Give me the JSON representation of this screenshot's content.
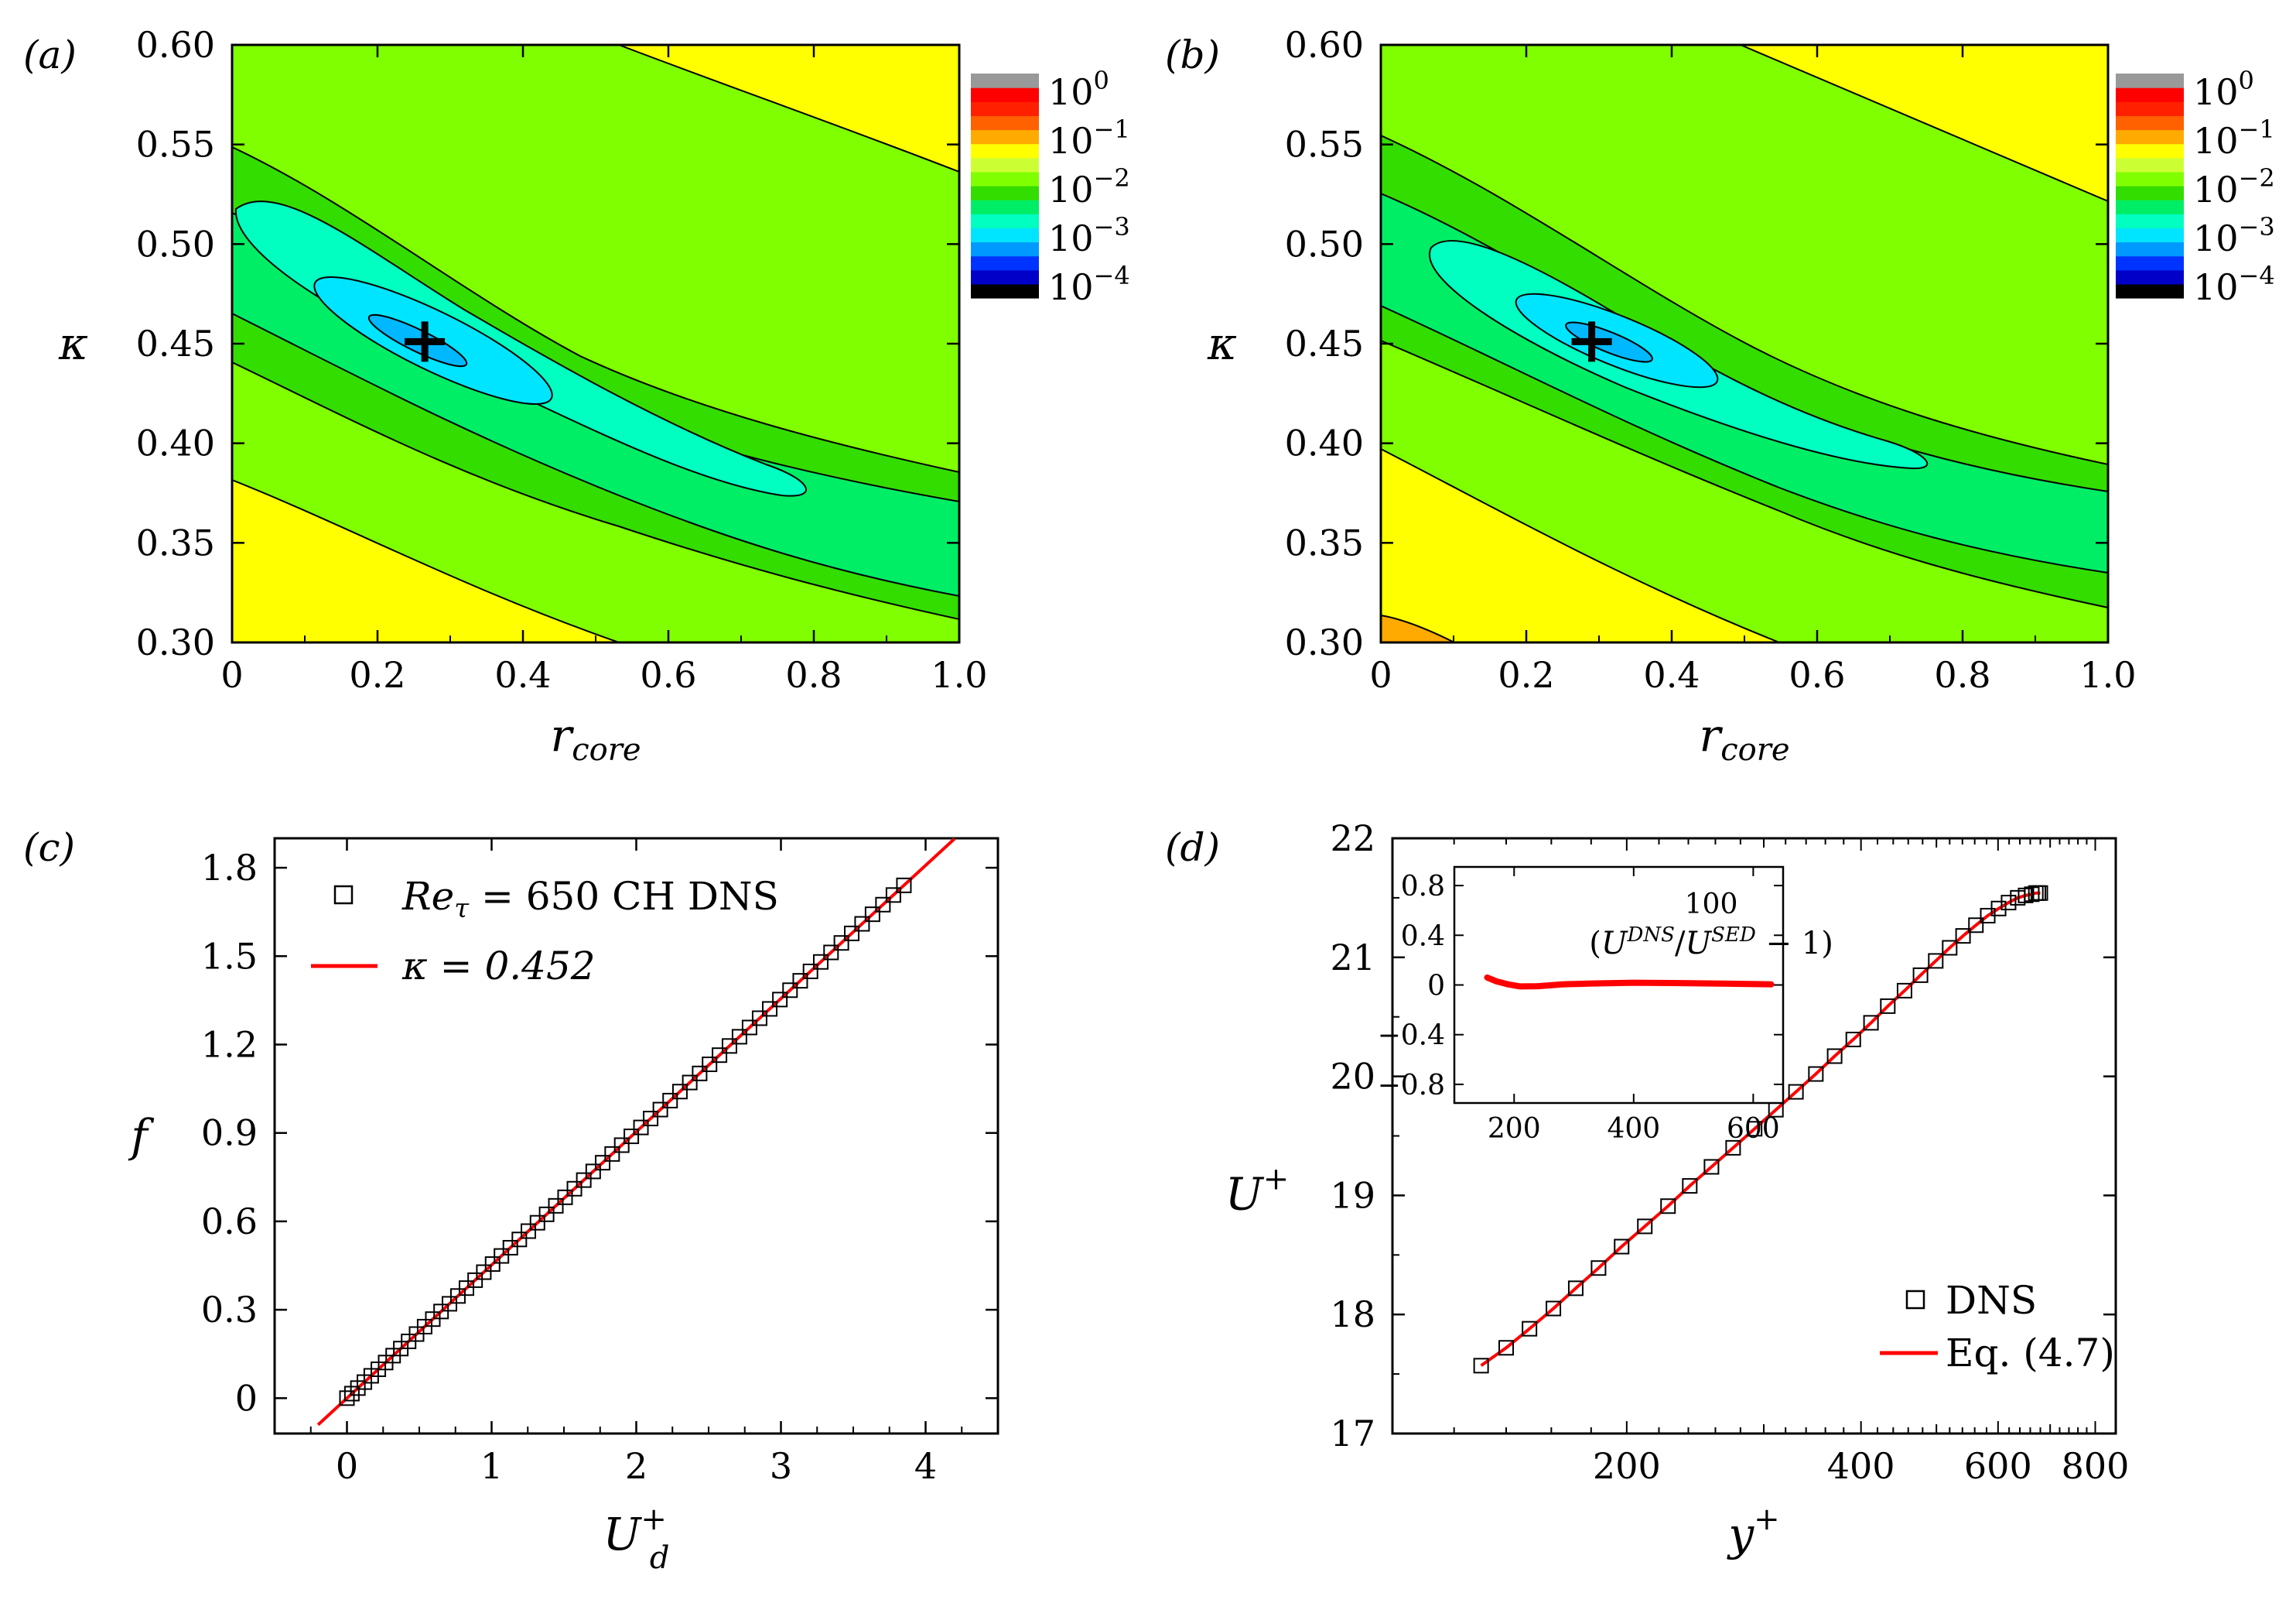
{
  "panels": {
    "a": {
      "label": "(a)"
    },
    "b": {
      "label": "(b)"
    },
    "c": {
      "label": "(c)"
    },
    "d": {
      "label": "(d)"
    }
  },
  "colorbar": {
    "colors": [
      "#000000",
      "#0000c8",
      "#0033ff",
      "#0099ff",
      "#00e5ff",
      "#00ffc0",
      "#00ee66",
      "#33dd00",
      "#80ff00",
      "#ccff33",
      "#ffff00",
      "#ffaa00",
      "#ff6000",
      "#ff2000",
      "#ff0000",
      "#999999"
    ],
    "labels": [
      {
        "base": "10",
        "exp": "0"
      },
      {
        "base": "10",
        "exp": "−1"
      },
      {
        "base": "10",
        "exp": "−2"
      },
      {
        "base": "10",
        "exp": "−3"
      },
      {
        "base": "10",
        "exp": "−4"
      }
    ]
  },
  "chart_data": [
    {
      "id": "a",
      "type": "contour",
      "xlabel": {
        "main": "r",
        "sub": "core"
      },
      "ylabel": "κ",
      "xlim": [
        0,
        1.0
      ],
      "ylim": [
        0.3,
        0.6
      ],
      "xticks": [
        "0",
        "0.2",
        "0.4",
        "0.6",
        "0.8",
        "1.0"
      ],
      "yticks": [
        "0.30",
        "0.35",
        "0.40",
        "0.45",
        "0.50",
        "0.55",
        "0.60"
      ],
      "marker": {
        "x": 0.265,
        "y": 0.451
      }
    },
    {
      "id": "b",
      "type": "contour",
      "xlabel": {
        "main": "r",
        "sub": "core"
      },
      "ylabel": "κ",
      "xlim": [
        0,
        1.0
      ],
      "ylim": [
        0.3,
        0.6
      ],
      "xticks": [
        "0",
        "0.2",
        "0.4",
        "0.6",
        "0.8",
        "1.0"
      ],
      "yticks": [
        "0.30",
        "0.35",
        "0.40",
        "0.45",
        "0.50",
        "0.55",
        "0.60"
      ],
      "marker": {
        "x": 0.29,
        "y": 0.451
      }
    },
    {
      "id": "c",
      "type": "scatter+line",
      "xlabel": {
        "main": "U",
        "sup": "+",
        "sub": "d"
      },
      "ylabel": "f",
      "xlim": [
        -0.5,
        4.5
      ],
      "ylim": [
        -0.12,
        1.9
      ],
      "xticks": [
        "0",
        "1",
        "2",
        "3",
        "4"
      ],
      "yticks": [
        "0",
        "0.3",
        "0.6",
        "0.9",
        "1.2",
        "1.5",
        "1.8"
      ],
      "legend": [
        {
          "name": "Re",
          "sub": "τ",
          "rest": " = 650 CH DNS",
          "style": "square"
        },
        {
          "name": "κ = 0.452",
          "style": "line"
        }
      ],
      "series": [
        {
          "name": "Re_τ = 650 CH DNS",
          "style": "square",
          "x_start": 0.0,
          "x_end": 3.85,
          "count": 62,
          "slope": 0.452
        },
        {
          "name": "κ = 0.452",
          "style": "line",
          "slope": 0.452,
          "x": [
            -0.2,
            4.2
          ]
        }
      ]
    },
    {
      "id": "d",
      "type": "scatter+line",
      "xlabel": {
        "main": "y",
        "sup": "+"
      },
      "ylabel": {
        "main": "U",
        "sup": "+"
      },
      "xscale": "log",
      "xlim": [
        100,
        850
      ],
      "ylim": [
        17,
        22
      ],
      "xticks": [
        "200",
        "400",
        "600",
        "800"
      ],
      "yticks": [
        "17",
        "18",
        "19",
        "20",
        "21",
        "22"
      ],
      "legend": [
        {
          "name": "DNS",
          "style": "square"
        },
        {
          "name": "Eq. (4.7)",
          "style": "line"
        }
      ],
      "series": [
        {
          "name": "DNS",
          "style": "square",
          "x": [
            130,
            140,
            150,
            161,
            172,
            184,
            197,
            211,
            226,
            241,
            257,
            274,
            292,
            311,
            330,
            350,
            370,
            391,
            412,
            433,
            455,
            477,
            499,
            520,
            541,
            562,
            582,
            601,
            619,
            636,
            651,
            663,
            671,
            676,
            680
          ],
          "y": [
            17.57,
            17.72,
            17.88,
            18.05,
            18.22,
            18.39,
            18.57,
            18.74,
            18.91,
            19.08,
            19.24,
            19.4,
            19.56,
            19.72,
            19.87,
            20.02,
            20.17,
            20.31,
            20.45,
            20.59,
            20.72,
            20.85,
            20.97,
            21.08,
            21.18,
            21.27,
            21.35,
            21.41,
            21.46,
            21.5,
            21.52,
            21.53,
            21.54,
            21.54,
            21.54
          ]
        },
        {
          "name": "Eq. (4.7)",
          "style": "line"
        }
      ],
      "inset": {
        "title_top": "100",
        "title_expr": "(U^DNS / U^SED − 1)",
        "xlim": [
          100,
          650
        ],
        "ylim": [
          -0.95,
          0.95
        ],
        "xticks": [
          "200",
          "400",
          "600"
        ],
        "yticks": [
          "0.8",
          "0.4",
          "0",
          "−0.4",
          "−0.8"
        ],
        "x": [
          155,
          170,
          190,
          210,
          240,
          280,
          330,
          400,
          480,
          560,
          630
        ],
        "y": [
          0.06,
          0.03,
          0.005,
          -0.012,
          -0.01,
          0.005,
          0.012,
          0.018,
          0.015,
          0.01,
          0.005
        ]
      }
    }
  ]
}
